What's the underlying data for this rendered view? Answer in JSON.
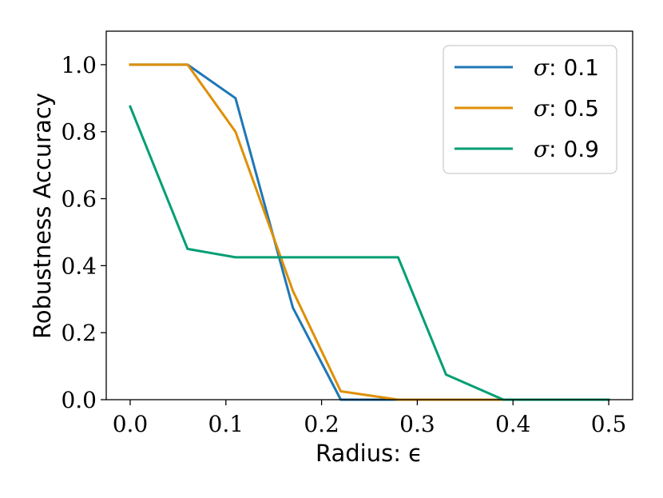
{
  "chart_data": {
    "type": "line",
    "xlabel": "Radius: ϵ",
    "ylabel": "Robustness Accuracy",
    "xlim": [
      -0.025,
      0.525
    ],
    "ylim": [
      0.0,
      1.1
    ],
    "x_ticks": [
      0.0,
      0.1,
      0.2,
      0.3,
      0.4,
      0.5
    ],
    "x_tick_labels": [
      "0.0",
      "0.1",
      "0.2",
      "0.3",
      "0.4",
      "0.5"
    ],
    "y_ticks": [
      0.0,
      0.2,
      0.4,
      0.6,
      0.8,
      1.0
    ],
    "y_tick_labels": [
      "0.0",
      "0.2",
      "0.4",
      "0.6",
      "0.8",
      "1.0"
    ],
    "grid": false,
    "legend_position": "top-right",
    "series": [
      {
        "name": "σ: 0.1",
        "symbol": "σ",
        "label_value": ": 0.1",
        "color": "#1f77b4",
        "x": [
          0.0,
          0.06,
          0.11,
          0.17,
          0.22,
          0.28,
          0.33,
          0.39,
          0.44,
          0.5
        ],
        "y": [
          1.0,
          1.0,
          0.9,
          0.275,
          0.0,
          0.0,
          0.0,
          0.0,
          0.0,
          0.0
        ]
      },
      {
        "name": "σ: 0.5",
        "symbol": "σ",
        "label_value": ": 0.5",
        "color": "#de8f05",
        "x": [
          0.0,
          0.06,
          0.11,
          0.17,
          0.22,
          0.28,
          0.33,
          0.39,
          0.44,
          0.5
        ],
        "y": [
          1.0,
          1.0,
          0.8,
          0.325,
          0.025,
          0.0,
          0.0,
          0.0,
          0.0,
          0.0
        ]
      },
      {
        "name": "σ: 0.9",
        "symbol": "σ",
        "label_value": ": 0.9",
        "color": "#029e73",
        "x": [
          0.0,
          0.06,
          0.11,
          0.17,
          0.22,
          0.28,
          0.33,
          0.39,
          0.44,
          0.5
        ],
        "y": [
          0.875,
          0.45,
          0.425,
          0.425,
          0.425,
          0.425,
          0.075,
          0.0,
          0.0,
          0.0
        ]
      }
    ]
  }
}
